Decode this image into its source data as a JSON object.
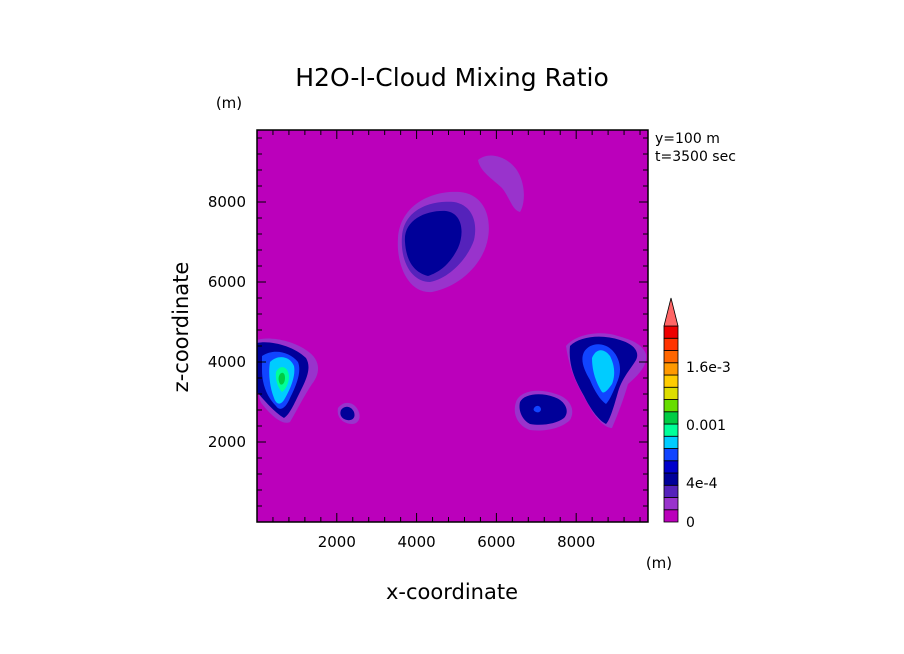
{
  "chart_data": {
    "type": "heatmap",
    "title": "H2O-l-Cloud Mixing Ratio",
    "xlabel": "x-coordinate",
    "ylabel": "z-coordinate",
    "x_unit": "(m)",
    "y_unit": "(m)",
    "xlim": [
      0,
      9800
    ],
    "ylim": [
      0,
      9800
    ],
    "x_ticks": [
      "2000",
      "4000",
      "6000",
      "8000"
    ],
    "y_ticks": [
      "2000",
      "4000",
      "6000",
      "8000"
    ],
    "annotations": [
      "y=100 m",
      "t=3500 sec"
    ],
    "colorbar": {
      "labels": [
        "0",
        "4e-4",
        "0.001",
        "1.6e-3"
      ],
      "levels": [
        0,
        0.0001,
        0.0002,
        0.0003,
        0.0004,
        0.0005,
        0.0006,
        0.0007,
        0.0008,
        0.0009,
        0.001,
        0.0011,
        0.0012,
        0.0013,
        0.0014,
        0.0015,
        0.0016,
        0.0017,
        0.0018
      ],
      "colors": [
        "#bb00bb",
        "#9933cc",
        "#5522bb",
        "#000099",
        "#0000cc",
        "#1144ff",
        "#00ccff",
        "#00ff99",
        "#00cc44",
        "#66dd00",
        "#dddd00",
        "#ffcc00",
        "#ff9900",
        "#ff6600",
        "#ff3300",
        "#ee0000",
        "#ff6666"
      ]
    },
    "features": [
      {
        "name": "upper-left cloud",
        "x": 4450,
        "z": 7100,
        "peak": 0.0003
      },
      {
        "name": "top arc",
        "x": 6200,
        "z": 8700,
        "peak": 0.0001
      },
      {
        "name": "left cloud",
        "x": 700,
        "z": 3700,
        "peak": 0.0008
      },
      {
        "name": "small left patch",
        "x": 2350,
        "z": 2800,
        "peak": 0.0002
      },
      {
        "name": "middle-right cloud",
        "x": 7100,
        "z": 2900,
        "peak": 0.0003
      },
      {
        "name": "right cloud",
        "x": 8800,
        "z": 3800,
        "peak": 0.0007
      }
    ]
  }
}
